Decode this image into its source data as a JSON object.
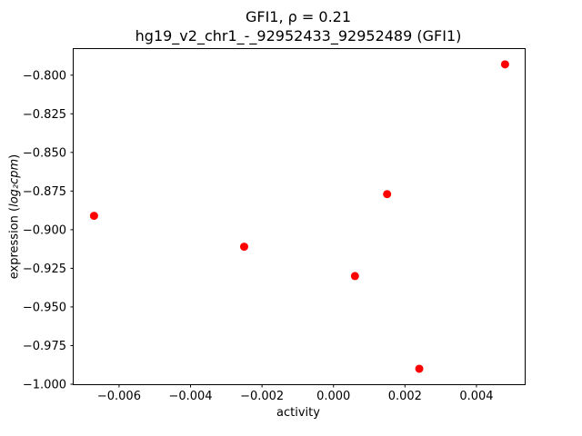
{
  "chart_data": {
    "type": "scatter",
    "title_line1": "GFI1, ρ = 0.21",
    "title_line2": "hg19_v2_chr1_-_92952433_92952489 (GFI1)",
    "xlabel": "activity",
    "ylabel_prefix": "expression (",
    "ylabel_math": "log₂cpm",
    "ylabel_suffix": ")",
    "xlim": [
      -0.00727,
      0.00535
    ],
    "ylim": [
      -1.0,
      -0.7831
    ],
    "x_ticks": [
      {
        "v": -0.006,
        "label": "−0.006"
      },
      {
        "v": -0.004,
        "label": "−0.004"
      },
      {
        "v": -0.002,
        "label": "−0.002"
      },
      {
        "v": 0.0,
        "label": "0.000"
      },
      {
        "v": 0.002,
        "label": "0.002"
      },
      {
        "v": 0.004,
        "label": "0.004"
      }
    ],
    "y_ticks": [
      {
        "v": -0.8,
        "label": "−0.800"
      },
      {
        "v": -0.825,
        "label": "−0.825"
      },
      {
        "v": -0.85,
        "label": "−0.850"
      },
      {
        "v": -0.875,
        "label": "−0.875"
      },
      {
        "v": -0.9,
        "label": "−0.900"
      },
      {
        "v": -0.925,
        "label": "−0.925"
      },
      {
        "v": -0.95,
        "label": "−0.950"
      },
      {
        "v": -0.975,
        "label": "−0.975"
      },
      {
        "v": -1.0,
        "label": "−1.000"
      }
    ],
    "points": [
      {
        "x": -0.0067,
        "y": -0.891
      },
      {
        "x": -0.0025,
        "y": -0.911
      },
      {
        "x": 0.0006,
        "y": -0.93
      },
      {
        "x": 0.0015,
        "y": -0.877
      },
      {
        "x": 0.0024,
        "y": -0.99
      },
      {
        "x": 0.0048,
        "y": -0.793
      }
    ],
    "point_color": "#ff0000",
    "axis_color": "#000000",
    "legend": "none",
    "grid": false
  }
}
